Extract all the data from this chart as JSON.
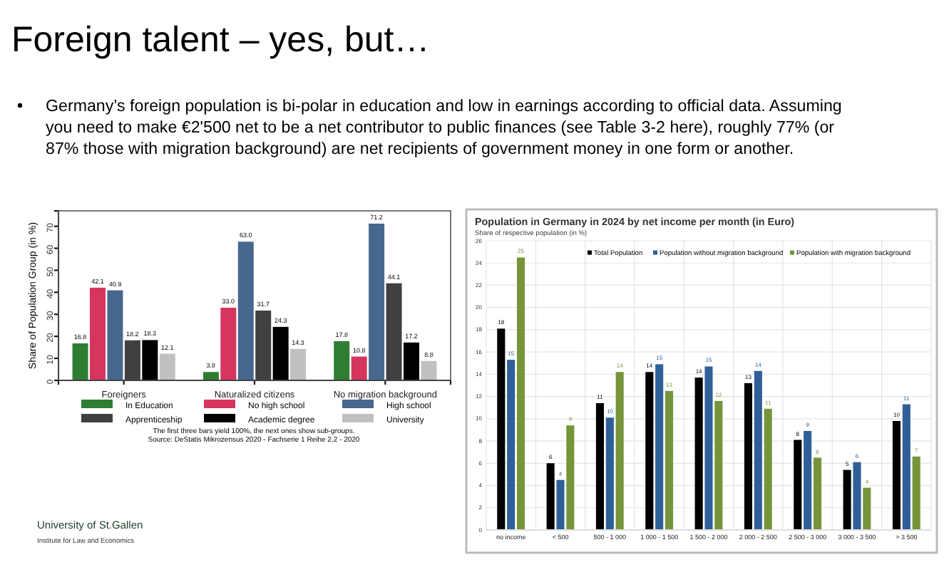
{
  "chart_data": [
    {
      "type": "bar",
      "title": "Foreign talent – yes, but…",
      "annotations": [
        "Germany’s foreign population is bi-polar in education and low in earnings according to official data. Assuming you need to make €2'500 net to be a net contributor to public finances (see Table 3-2 here), roughly 77% (or 87% those with migration background) are net recipients of government money in one form or another.",
        "The first three bars yield 100%, the next ones show sub-groups.",
        "Source: DeStatis Mikrozensus 2020 - Fachserie 1 Reihe 2.2 - 2020",
        "University of St.Gallen",
        "Institute for Law and Economics"
      ],
      "categories": [
        "Foreigners",
        "Naturalized citizens",
        "No migration background"
      ],
      "series": [
        {
          "name": "In Education",
          "color": "#2e7d32",
          "values": [
            16.8,
            3.8,
            17.8
          ],
          "value_labels": [
            "16.8",
            "3.8",
            "17.8"
          ]
        },
        {
          "name": "No high school",
          "color": "#d6365e",
          "values": [
            42.1,
            33.0,
            10.8
          ],
          "value_labels": [
            "42.1",
            "33.0",
            "10.8"
          ]
        },
        {
          "name": "High school",
          "color": "#46688f",
          "values": [
            40.9,
            63.0,
            71.2
          ],
          "value_labels": [
            "40.9",
            "63.0",
            "71.2"
          ]
        },
        {
          "name": "Apprenticeship",
          "color": "#404040",
          "values": [
            18.2,
            31.7,
            44.1
          ],
          "value_labels": [
            "18.2",
            "31.7",
            "44.1"
          ]
        },
        {
          "name": "Academic degree",
          "color": "#000000",
          "values": [
            18.3,
            24.3,
            17.2
          ],
          "value_labels": [
            "18.3",
            "24.3",
            "17.2"
          ]
        },
        {
          "name": "University",
          "color": "#c0c0c0",
          "values": [
            12.1,
            14.3,
            8.8
          ],
          "value_labels": [
            "12.1",
            "14.3",
            "8.8"
          ]
        }
      ],
      "ylabel": "Share of Population Group (in %)",
      "ylim": [
        0,
        77
      ],
      "yticks": [
        0,
        10,
        20,
        30,
        40,
        50,
        60,
        70
      ],
      "legend": "bottom"
    },
    {
      "type": "bar",
      "title": "Population in Germany in 2024 by net income per month (in Euro)",
      "subtitle": "Share of respective population (in %)",
      "categories": [
        "no income",
        "< 500",
        "500 - 1 000",
        "1 000 - 1 500",
        "1 500 - 2 000",
        "2 000 - 2 500",
        "2 500 - 3 000",
        "3 000 - 3 500",
        "> 3 500"
      ],
      "series": [
        {
          "name": "Total Population",
          "color": "#000000",
          "values": [
            18.1,
            6.0,
            11.4,
            14.2,
            13.7,
            13.2,
            8.1,
            5.4,
            9.8
          ],
          "value_labels": [
            "18",
            "6",
            "11",
            "14",
            "14",
            "13",
            "8",
            "5",
            "10"
          ]
        },
        {
          "name": "Population without migration background",
          "color": "#2f5f98",
          "values": [
            15.3,
            4.5,
            10.1,
            14.9,
            14.7,
            14.3,
            8.9,
            6.1,
            11.3
          ],
          "value_labels": [
            "15",
            "4",
            "10",
            "15",
            "15",
            "14",
            "9",
            "6",
            "11"
          ]
        },
        {
          "name": "Population with migration background",
          "color": "#76953a",
          "values": [
            24.5,
            9.4,
            14.2,
            12.5,
            11.6,
            10.9,
            6.5,
            3.8,
            6.6
          ],
          "value_labels": [
            "25",
            "9",
            "14",
            "13",
            "12",
            "11",
            "6",
            "4",
            "7"
          ]
        }
      ],
      "ylim": [
        0,
        26
      ],
      "yticks": [
        0,
        2,
        4,
        6,
        8,
        10,
        12,
        14,
        16,
        18,
        20,
        22,
        24,
        26
      ],
      "grid": true,
      "legend": "top"
    }
  ]
}
